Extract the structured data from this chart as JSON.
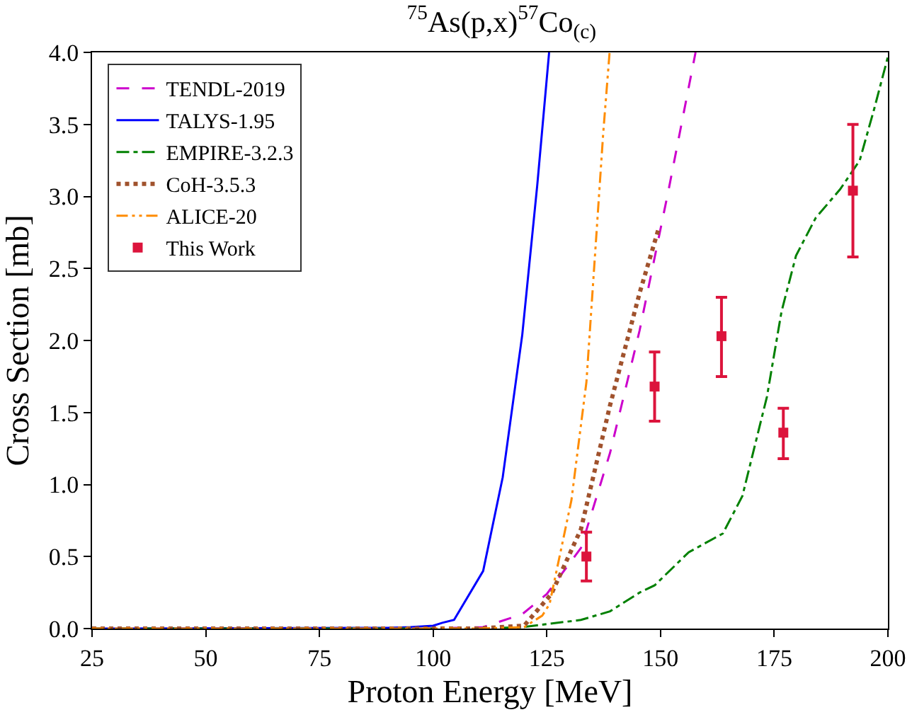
{
  "chart_data": {
    "type": "line",
    "title": "$^{75}$As(p,x)$^{57}$Co$_{(c)}$",
    "xlabel": "Proton Energy [MeV]",
    "ylabel": "Cross Section [mb]",
    "xlim": [
      25,
      200
    ],
    "xticks": [
      25,
      50,
      75,
      100,
      125,
      150,
      175,
      200
    ],
    "ylim": [
      0,
      4
    ],
    "yticks": [
      {
        "value": 0,
        "label": "0.0"
      },
      {
        "value": 0.5,
        "label": "0.5"
      },
      {
        "value": 1,
        "label": "1.0"
      },
      {
        "value": 1.5,
        "label": "1.5"
      },
      {
        "value": 2,
        "label": "2.0"
      },
      {
        "value": 2.5,
        "label": "2.5"
      },
      {
        "value": 3,
        "label": "3.0"
      },
      {
        "value": 3.5,
        "label": "3.5"
      },
      {
        "value": 4,
        "label": "4.0"
      }
    ],
    "grid": false,
    "legend": "top left",
    "series": [
      {
        "name": "TENDL-2019",
        "color": "#cc00cc",
        "line_style": "dashed",
        "marker": "none",
        "x": [
          25,
          100,
          111,
          119.6,
          125,
          132.5,
          138.9,
          145.4,
          151.8,
          157.7
        ],
        "values": [
          0,
          0,
          0.01,
          0.1,
          0.24,
          0.56,
          1.22,
          2.07,
          3.05,
          4.0
        ]
      },
      {
        "name": "TALYS-1.95",
        "color": "#0000ff",
        "line_style": "solid",
        "marker": "none",
        "x": [
          25,
          90,
          95,
          100,
          102,
          104.6,
          111,
          115.3,
          119.6,
          122.9,
          125.5
        ],
        "values": [
          0,
          0.005,
          0.01,
          0.02,
          0.04,
          0.06,
          0.4,
          1.05,
          2.04,
          3.08,
          4.0
        ]
      },
      {
        "name": "EMPIRE-3.2.3",
        "color": "#008000",
        "line_style": "dashdot",
        "marker": "none",
        "x": [
          25,
          110,
          119.6,
          132.5,
          138.9,
          145.4,
          148.7,
          156.2,
          163.7,
          168,
          173.4,
          176.6,
          179.8,
          184.1,
          189.5,
          193.8,
          197,
          200
        ],
        "values": [
          0,
          0,
          0.01,
          0.06,
          0.12,
          0.25,
          0.3,
          0.53,
          0.66,
          0.92,
          1.61,
          2.2,
          2.59,
          2.85,
          3.05,
          3.25,
          3.61,
          3.97
        ]
      },
      {
        "name": "CoH-3.5.3",
        "color": "#a0522d",
        "line_style": "dotted",
        "marker": "none",
        "x": [
          25,
          110,
          120,
          126,
          132.5,
          138.9,
          145.4,
          149.7
        ],
        "values": [
          0,
          0,
          0.02,
          0.24,
          0.69,
          1.55,
          2.33,
          2.79
        ]
      },
      {
        "name": "ALICE-20",
        "color": "#ff8c00",
        "line_style": "dashdotdot",
        "marker": "none",
        "x": [
          25,
          110,
          120,
          124,
          125.6,
          130.4,
          133.7,
          135.8,
          137.4,
          138.8
        ],
        "values": [
          0,
          0,
          0.01,
          0.09,
          0.17,
          0.89,
          1.71,
          2.69,
          3.44,
          4.0
        ]
      },
      {
        "name": "This Work",
        "type": "scatter",
        "color": "#dc143c",
        "marker": "square",
        "x": [
          133.7,
          148.7,
          163.4,
          177.0,
          192.3
        ],
        "values": [
          0.5,
          1.68,
          2.03,
          1.36,
          3.04
        ],
        "errors": [
          [
            0.33,
            0.67
          ],
          [
            1.44,
            1.92
          ],
          [
            1.75,
            2.3
          ],
          [
            1.18,
            1.53
          ],
          [
            2.58,
            3.5
          ]
        ]
      }
    ]
  }
}
